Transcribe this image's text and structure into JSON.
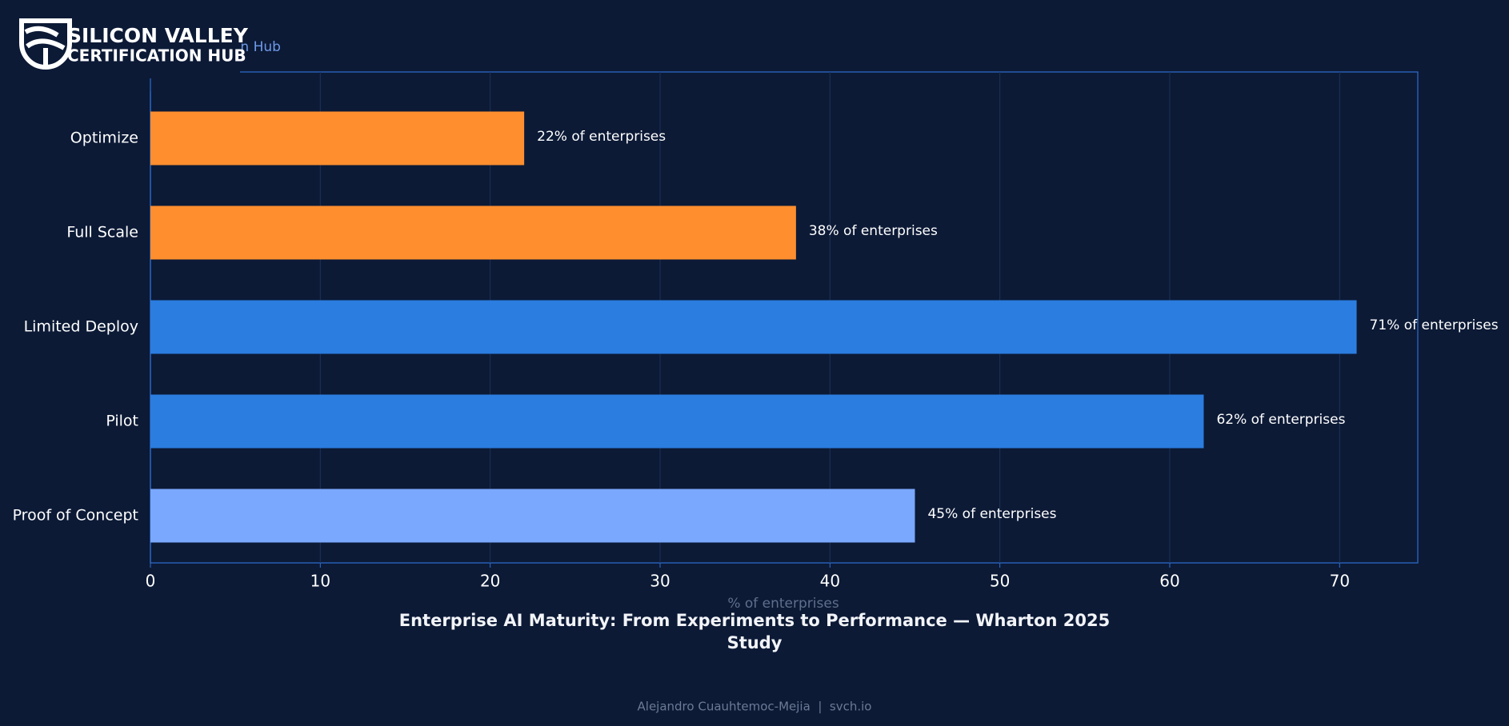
{
  "logo": {
    "line1": "SILICON VALLEY",
    "line2": "CERTIFICATION HUB"
  },
  "chart_data": {
    "type": "barh",
    "subtitle": "on Hub",
    "title": "Enterprise AI Maturity: From Experiments to Performance — Wharton 2025 Study",
    "xlabel": "% of enterprises",
    "footer": "Alejandro Cuauhtemoc-Mejia  |  svch.io",
    "categories": [
      "Optimize",
      "Full Scale",
      "Limited Deploy",
      "Pilot",
      "Proof of Concept"
    ],
    "values": [
      22,
      38,
      71,
      62,
      45
    ],
    "value_labels": [
      "22% of enterprises",
      "38% of enterprises",
      "71% of enterprises",
      "62% of enterprises",
      "45% of enterprises"
    ],
    "colors": [
      "#ff8f2e",
      "#ff8f2e",
      "#2b7de0",
      "#2b7de0",
      "#7aa8ff"
    ],
    "xlim": [
      0,
      74.6
    ],
    "xticks": [
      0,
      10,
      20,
      30,
      40,
      50,
      60,
      70
    ],
    "grid": true
  }
}
